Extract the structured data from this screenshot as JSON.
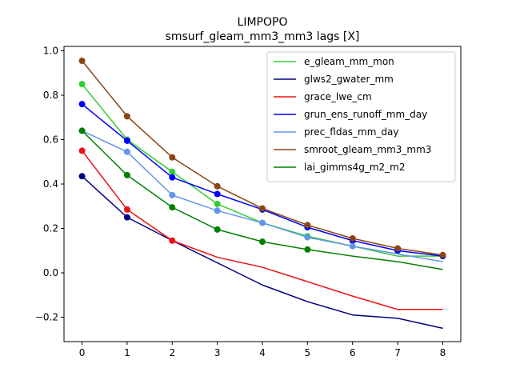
{
  "chart_data": {
    "type": "line",
    "title": "LIMPOPO",
    "subtitle": "smsurf_gleam_mm3_mm3 lags [X]",
    "xlabel": "",
    "ylabel": "",
    "x": [
      0,
      1,
      2,
      3,
      4,
      5,
      6,
      7,
      8
    ],
    "xlim": [
      -0.4,
      8.4
    ],
    "ylim": [
      -0.31,
      1.02
    ],
    "xticks": [
      0,
      1,
      2,
      3,
      4,
      5,
      6,
      7,
      8
    ],
    "yticks": [
      -0.2,
      0.0,
      0.2,
      0.4,
      0.6,
      0.8,
      1.0
    ],
    "ytick_labels": [
      "−0.2",
      "0.0",
      "0.2",
      "0.4",
      "0.6",
      "0.8",
      "1.0"
    ],
    "grid": false,
    "legend_position": "top-right",
    "series": [
      {
        "name": "e_gleam_mm_mon",
        "color": "#32cd32",
        "values": [
          0.85,
          0.6,
          0.455,
          0.31,
          0.225,
          0.165,
          0.12,
          0.075,
          0.075
        ],
        "marker_upto": 5
      },
      {
        "name": "glws2_gwater_mm",
        "color": "#000080",
        "values": [
          0.435,
          0.25,
          0.145,
          0.045,
          -0.055,
          -0.13,
          -0.19,
          -0.205,
          -0.25
        ],
        "marker_upto": 1
      },
      {
        "name": "grace_lwe_cm",
        "color": "#ee1111",
        "values": [
          0.55,
          0.285,
          0.145,
          0.07,
          0.025,
          -0.04,
          -0.105,
          -0.165,
          -0.165
        ],
        "marker_upto": 2
      },
      {
        "name": "grun_ens_runoff_mm_day",
        "color": "#0000ff",
        "values": [
          0.76,
          0.595,
          0.43,
          0.355,
          0.285,
          0.205,
          0.145,
          0.1,
          0.075
        ],
        "marker_upto": 8
      },
      {
        "name": "prec_fldas_mm_day",
        "color": "#6495ed",
        "values": [
          0.64,
          0.545,
          0.35,
          0.28,
          0.225,
          0.16,
          0.12,
          0.085,
          0.05
        ],
        "marker_upto": 6
      },
      {
        "name": "smroot_gleam_mm3_mm3",
        "color": "#8b4513",
        "values": [
          0.955,
          0.705,
          0.52,
          0.39,
          0.29,
          0.215,
          0.155,
          0.11,
          0.08
        ],
        "marker_upto": 8
      },
      {
        "name": "lai_gimms4g_m2_m2",
        "color": "#008000",
        "values": [
          0.64,
          0.44,
          0.295,
          0.195,
          0.14,
          0.105,
          0.075,
          0.05,
          0.015
        ],
        "marker_upto": 5
      }
    ]
  }
}
